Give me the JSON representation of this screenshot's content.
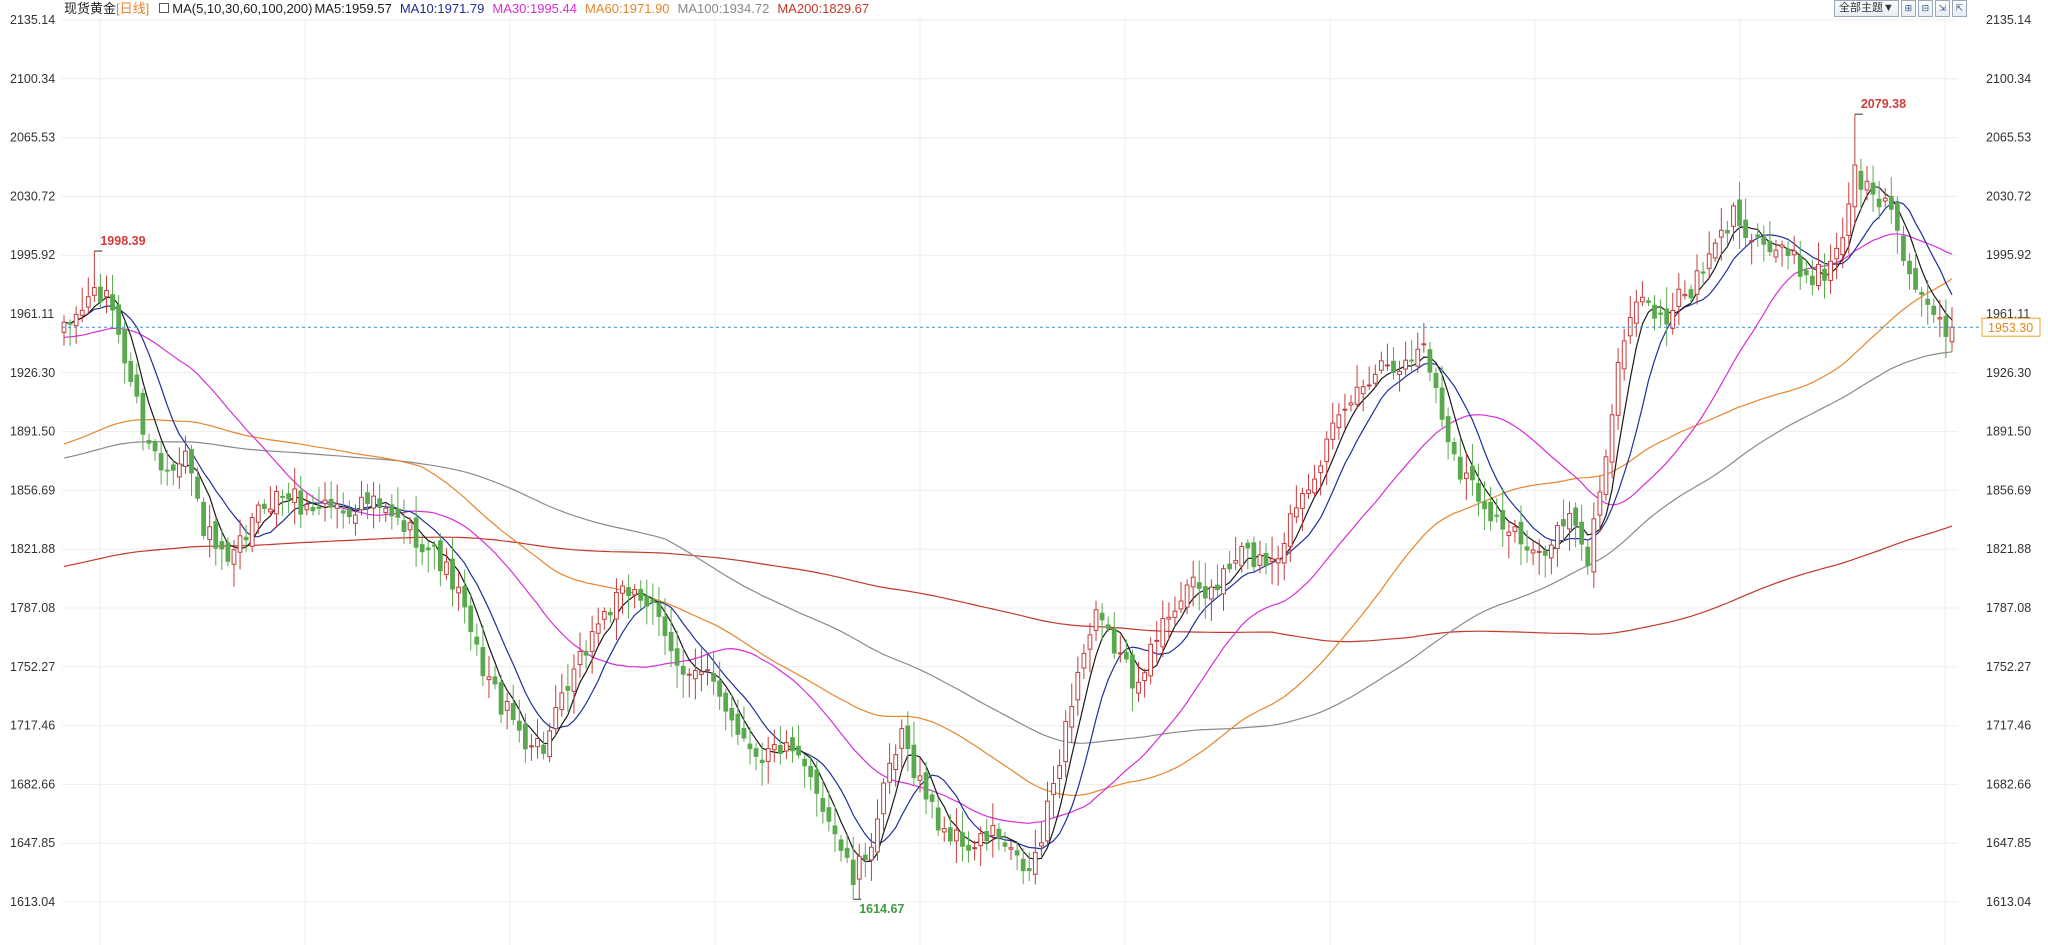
{
  "header": {
    "title": "现货黄金",
    "period": "[日线]",
    "ma_set_label": "MA(5,10,30,60,100,200)",
    "ma_values": [
      {
        "label": "MA5:1959.57",
        "color": "#1a1a1a"
      },
      {
        "label": "MA10:1971.79",
        "color": "#1f2f9a"
      },
      {
        "label": "MA30:1995.44",
        "color": "#d72fd7"
      },
      {
        "label": "MA60:1971.90",
        "color": "#e6862d"
      },
      {
        "label": "MA100:1934.72",
        "color": "#8a8a8a"
      },
      {
        "label": "MA200:1829.67",
        "color": "#c0392b"
      }
    ]
  },
  "toolbar": {
    "theme_label": "全部主题▼",
    "icons": [
      "chart-type-icon",
      "split-view-icon",
      "export-icon",
      "fullscreen-icon"
    ],
    "icon_glyphs": [
      "⊞",
      "⊟",
      "⇲",
      "⇱"
    ]
  },
  "colors": {
    "up": "#c43c3c",
    "down": "#5aa94e",
    "grid": "#ececec",
    "axis_text": "#333333",
    "current_line": "#3d8fd1",
    "current_tag_border": "#f0a030",
    "current_tag_text": "#e08a1e",
    "high_label": "#d33b3b",
    "low_label": "#3e9b3e"
  },
  "chart_data": {
    "type": "candlestick",
    "ylim": [
      1600,
      2150
    ],
    "y_ticks": [
      "2135.14",
      "2100.34",
      "2065.53",
      "2030.72",
      "1995.92",
      "1961.11",
      "1926.30",
      "1891.50",
      "1856.69",
      "1821.88",
      "1787.08",
      "1752.27",
      "1717.46",
      "1682.66",
      "1647.85",
      "1613.04"
    ],
    "current_price": "1953.30",
    "annotations": {
      "high_left": "1998.39",
      "low": "1614.67",
      "high_right": "2079.38"
    },
    "price_path": [
      [
        0,
        1950
      ],
      [
        5,
        1975
      ],
      [
        8,
        1965
      ],
      [
        10,
        1935
      ],
      [
        13,
        1895
      ],
      [
        16,
        1870
      ],
      [
        20,
        1880
      ],
      [
        23,
        1835
      ],
      [
        27,
        1810
      ],
      [
        30,
        1830
      ],
      [
        33,
        1850
      ],
      [
        37,
        1855
      ],
      [
        40,
        1845
      ],
      [
        43,
        1850
      ],
      [
        46,
        1845
      ],
      [
        50,
        1850
      ],
      [
        54,
        1840
      ],
      [
        58,
        1830
      ],
      [
        62,
        1815
      ],
      [
        65,
        1795
      ],
      [
        68,
        1760
      ],
      [
        72,
        1730
      ],
      [
        76,
        1710
      ],
      [
        79,
        1705
      ],
      [
        82,
        1730
      ],
      [
        85,
        1755
      ],
      [
        88,
        1780
      ],
      [
        91,
        1790
      ],
      [
        94,
        1800
      ],
      [
        97,
        1785
      ],
      [
        100,
        1760
      ],
      [
        103,
        1750
      ],
      [
        106,
        1745
      ],
      [
        109,
        1730
      ],
      [
        112,
        1710
      ],
      [
        115,
        1700
      ],
      [
        118,
        1705
      ],
      [
        121,
        1695
      ],
      [
        124,
        1680
      ],
      [
        127,
        1655
      ],
      [
        130,
        1625
      ],
      [
        133,
        1650
      ],
      [
        136,
        1690
      ],
      [
        138,
        1710
      ],
      [
        141,
        1685
      ],
      [
        144,
        1660
      ],
      [
        147,
        1650
      ],
      [
        150,
        1645
      ],
      [
        153,
        1655
      ],
      [
        156,
        1640
      ],
      [
        159,
        1630
      ],
      [
        161,
        1650
      ],
      [
        164,
        1700
      ],
      [
        167,
        1750
      ],
      [
        170,
        1780
      ],
      [
        173,
        1765
      ],
      [
        176,
        1745
      ],
      [
        179,
        1760
      ],
      [
        182,
        1785
      ],
      [
        185,
        1800
      ],
      [
        188,
        1795
      ],
      [
        191,
        1805
      ],
      [
        194,
        1820
      ],
      [
        197,
        1815
      ],
      [
        200,
        1820
      ],
      [
        203,
        1850
      ],
      [
        206,
        1870
      ],
      [
        209,
        1890
      ],
      [
        212,
        1910
      ],
      [
        215,
        1925
      ],
      [
        218,
        1935
      ],
      [
        221,
        1930
      ],
      [
        224,
        1945
      ],
      [
        227,
        1900
      ],
      [
        230,
        1870
      ],
      [
        233,
        1855
      ],
      [
        236,
        1840
      ],
      [
        239,
        1830
      ],
      [
        242,
        1815
      ],
      [
        245,
        1830
      ],
      [
        248,
        1840
      ],
      [
        251,
        1815
      ],
      [
        254,
        1880
      ],
      [
        257,
        1950
      ],
      [
        260,
        1975
      ],
      [
        263,
        1955
      ],
      [
        266,
        1970
      ],
      [
        269,
        1980
      ],
      [
        272,
        2000
      ],
      [
        275,
        2020
      ],
      [
        278,
        2010
      ],
      [
        281,
        2000
      ],
      [
        284,
        1995
      ],
      [
        287,
        1985
      ],
      [
        290,
        1985
      ],
      [
        293,
        2010
      ],
      [
        295,
        2045
      ],
      [
        298,
        2030
      ],
      [
        301,
        2025
      ],
      [
        304,
        1985
      ],
      [
        307,
        1960
      ],
      [
        309,
        1955
      ],
      [
        311,
        1945
      ]
    ],
    "ma_start": {
      "ma30": 1947,
      "ma60": 1893,
      "ma100": 1855,
      "ma200": 1823
    }
  }
}
